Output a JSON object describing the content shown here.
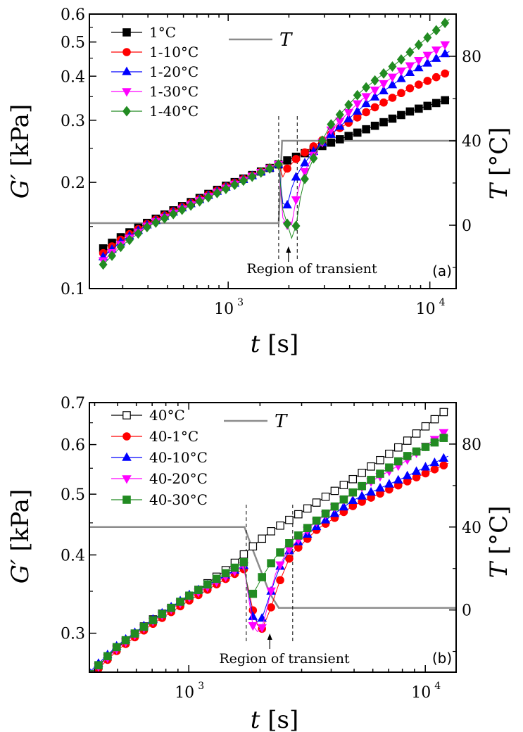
{
  "chart_data": [
    {
      "type": "scatter",
      "panel_label": "(a)",
      "xlabel_var": "t",
      "xlabel_unit": "[s]",
      "ylabel_var": "G′",
      "ylabel_unit": "[kPa]",
      "y2label_var": "T",
      "y2label_unit": "[°C]",
      "xscale": "log",
      "yscale": "log",
      "xlim": [
        205,
        13500
      ],
      "ylim": [
        0.1,
        0.6
      ],
      "y2lim": [
        -30,
        100
      ],
      "xticks": [
        {
          "value": 1000,
          "label": "10",
          "exp": "3"
        },
        {
          "value": 10000,
          "label": "10",
          "exp": "4"
        }
      ],
      "yticks": [
        {
          "value": 0.1,
          "label": "0.1"
        },
        {
          "value": 0.2,
          "label": "0.2"
        },
        {
          "value": 0.3,
          "label": "0.3"
        },
        {
          "value": 0.4,
          "label": "0.4"
        },
        {
          "value": 0.5,
          "label": "0.5"
        },
        {
          "value": 0.6,
          "label": "0.6"
        }
      ],
      "y2ticks": [
        {
          "value": 0,
          "label": "0"
        },
        {
          "value": 40,
          "label": "40"
        },
        {
          "value": 80,
          "label": "80"
        }
      ],
      "legend_position": "top-left",
      "annotation": "Region of transient",
      "transient_lines": [
        1780,
        2200
      ],
      "arrow_x": 1990,
      "temperature": {
        "name": "T",
        "color": "#8c8c8c",
        "x": [
          205,
          1780,
          1850,
          1950,
          13500
        ],
        "y": [
          1,
          1,
          40,
          40,
          40
        ]
      },
      "series": [
        {
          "name": "1°C",
          "color": "#000000",
          "marker": "square",
          "filled": true,
          "x": [
            240,
            300,
            400,
            600,
            1000,
            1780,
            2000,
            3000,
            5000,
            8000,
            12500
          ],
          "y": [
            0.13,
            0.141,
            0.154,
            0.172,
            0.197,
            0.225,
            0.232,
            0.255,
            0.285,
            0.318,
            0.345
          ]
        },
        {
          "name": "1-10°C",
          "color": "#ff0000",
          "marker": "circle",
          "filled": true,
          "x": [
            240,
            300,
            400,
            600,
            1000,
            1780,
            1850,
            1950,
            2200,
            2700,
            3500,
            5000,
            8000,
            12500
          ],
          "y": [
            0.126,
            0.139,
            0.153,
            0.171,
            0.196,
            0.225,
            0.205,
            0.218,
            0.235,
            0.255,
            0.283,
            0.32,
            0.37,
            0.412
          ]
        },
        {
          "name": "1-20°C",
          "color": "#0000ff",
          "marker": "triangle-up",
          "filled": true,
          "x": [
            240,
            300,
            400,
            600,
            1000,
            1780,
            1850,
            1950,
            2100,
            2300,
            2700,
            3500,
            5000,
            8000,
            12500
          ],
          "y": [
            0.123,
            0.137,
            0.152,
            0.17,
            0.195,
            0.225,
            0.175,
            0.17,
            0.2,
            0.22,
            0.248,
            0.285,
            0.34,
            0.41,
            0.47
          ]
        },
        {
          "name": "1-30°C",
          "color": "#ff00ff",
          "marker": "triangle-down",
          "filled": true,
          "x": [
            240,
            300,
            400,
            600,
            1000,
            1780,
            1850,
            1950,
            2050,
            2150,
            2300,
            2600,
            3200,
            4500,
            7000,
            12500
          ],
          "y": [
            0.12,
            0.135,
            0.151,
            0.169,
            0.194,
            0.225,
            0.16,
            0.152,
            0.148,
            0.175,
            0.205,
            0.235,
            0.28,
            0.34,
            0.41,
            0.5
          ]
        },
        {
          "name": "1-40°C",
          "color": "#228b22",
          "marker": "diamond",
          "filled": true,
          "x": [
            240,
            300,
            400,
            600,
            1000,
            1780,
            1850,
            1950,
            2050,
            2150,
            2250,
            2400,
            2700,
            3200,
            4500,
            7000,
            12500
          ],
          "y": [
            0.117,
            0.133,
            0.15,
            0.168,
            0.193,
            0.225,
            0.17,
            0.155,
            0.138,
            0.145,
            0.175,
            0.205,
            0.24,
            0.29,
            0.36,
            0.44,
            0.58
          ]
        }
      ]
    },
    {
      "type": "scatter",
      "panel_label": "(b)",
      "xlabel_var": "t",
      "xlabel_unit": "[s]",
      "ylabel_var": "G′",
      "ylabel_unit": "[kPa]",
      "y2label_var": "T",
      "y2label_unit": "[°C]",
      "xscale": "log",
      "yscale": "log",
      "xlim": [
        380,
        13500
      ],
      "ylim": [
        0.26,
        0.7
      ],
      "y2lim": [
        -30,
        100
      ],
      "xticks": [
        {
          "value": 1000,
          "label": "10",
          "exp": "3"
        },
        {
          "value": 10000,
          "label": "10",
          "exp": "4"
        }
      ],
      "yticks": [
        {
          "value": 0.3,
          "label": "0.3"
        },
        {
          "value": 0.4,
          "label": "0.4"
        },
        {
          "value": 0.5,
          "label": "0.5"
        },
        {
          "value": 0.6,
          "label": "0.6"
        },
        {
          "value": 0.7,
          "label": "0.7"
        }
      ],
      "y2ticks": [
        {
          "value": 0,
          "label": "0"
        },
        {
          "value": 40,
          "label": "40"
        },
        {
          "value": 80,
          "label": "80"
        }
      ],
      "legend_position": "top-left",
      "annotation": "Region of transient",
      "transient_lines": [
        1750,
        2750
      ],
      "arrow_x": 2200,
      "temperature": {
        "name": "T",
        "color": "#8c8c8c",
        "x": [
          380,
          1720,
          1850,
          2000,
          2200,
          2400,
          2600,
          13500
        ],
        "y": [
          40,
          40,
          30,
          20,
          8,
          1,
          1,
          1
        ]
      },
      "series": [
        {
          "name": "40°C",
          "color": "#000000",
          "marker": "square",
          "filled": false,
          "x": [
            380,
            500,
            700,
            1000,
            1500,
            1800,
            2200,
            3000,
            5000,
            8000,
            12500
          ],
          "y": [
            0.258,
            0.285,
            0.315,
            0.343,
            0.383,
            0.408,
            0.435,
            0.468,
            0.53,
            0.6,
            0.685
          ]
        },
        {
          "name": "40-1°C",
          "color": "#ff0000",
          "marker": "circle",
          "filled": true,
          "x": [
            380,
            500,
            700,
            1000,
            1500,
            1720,
            1850,
            2000,
            2200,
            2400,
            2700,
            3500,
            5000,
            8000,
            12500
          ],
          "y": [
            0.255,
            0.282,
            0.31,
            0.338,
            0.37,
            0.38,
            0.33,
            0.3,
            0.325,
            0.36,
            0.4,
            0.44,
            0.48,
            0.52,
            0.56
          ]
        },
        {
          "name": "40-10°C",
          "color": "#0000ff",
          "marker": "triangle-up",
          "filled": true,
          "x": [
            380,
            500,
            700,
            1000,
            1500,
            1720,
            1850,
            2000,
            2200,
            2400,
            2700,
            3500,
            5000,
            8000,
            12500
          ],
          "y": [
            0.26,
            0.287,
            0.315,
            0.345,
            0.375,
            0.385,
            0.32,
            0.31,
            0.345,
            0.38,
            0.41,
            0.445,
            0.49,
            0.53,
            0.575
          ]
        },
        {
          "name": "40-20°C",
          "color": "#ff00ff",
          "marker": "triangle-down",
          "filled": true,
          "x": [
            380,
            500,
            700,
            1000,
            1500,
            1720,
            1850,
            2000,
            2150,
            2300,
            2600,
            3300,
            5000,
            8000,
            12500
          ],
          "y": [
            0.257,
            0.284,
            0.313,
            0.342,
            0.373,
            0.385,
            0.31,
            0.298,
            0.33,
            0.37,
            0.405,
            0.445,
            0.505,
            0.56,
            0.635
          ]
        },
        {
          "name": "40-30°C",
          "color": "#228b22",
          "marker": "square",
          "filled": true,
          "x": [
            380,
            500,
            700,
            1000,
            1500,
            1720,
            1800,
            1900,
            2050,
            2300,
            2700,
            3500,
            5000,
            8000,
            12500
          ],
          "y": [
            0.258,
            0.286,
            0.314,
            0.344,
            0.378,
            0.39,
            0.34,
            0.35,
            0.37,
            0.395,
            0.42,
            0.455,
            0.505,
            0.57,
            0.62
          ]
        }
      ]
    }
  ]
}
